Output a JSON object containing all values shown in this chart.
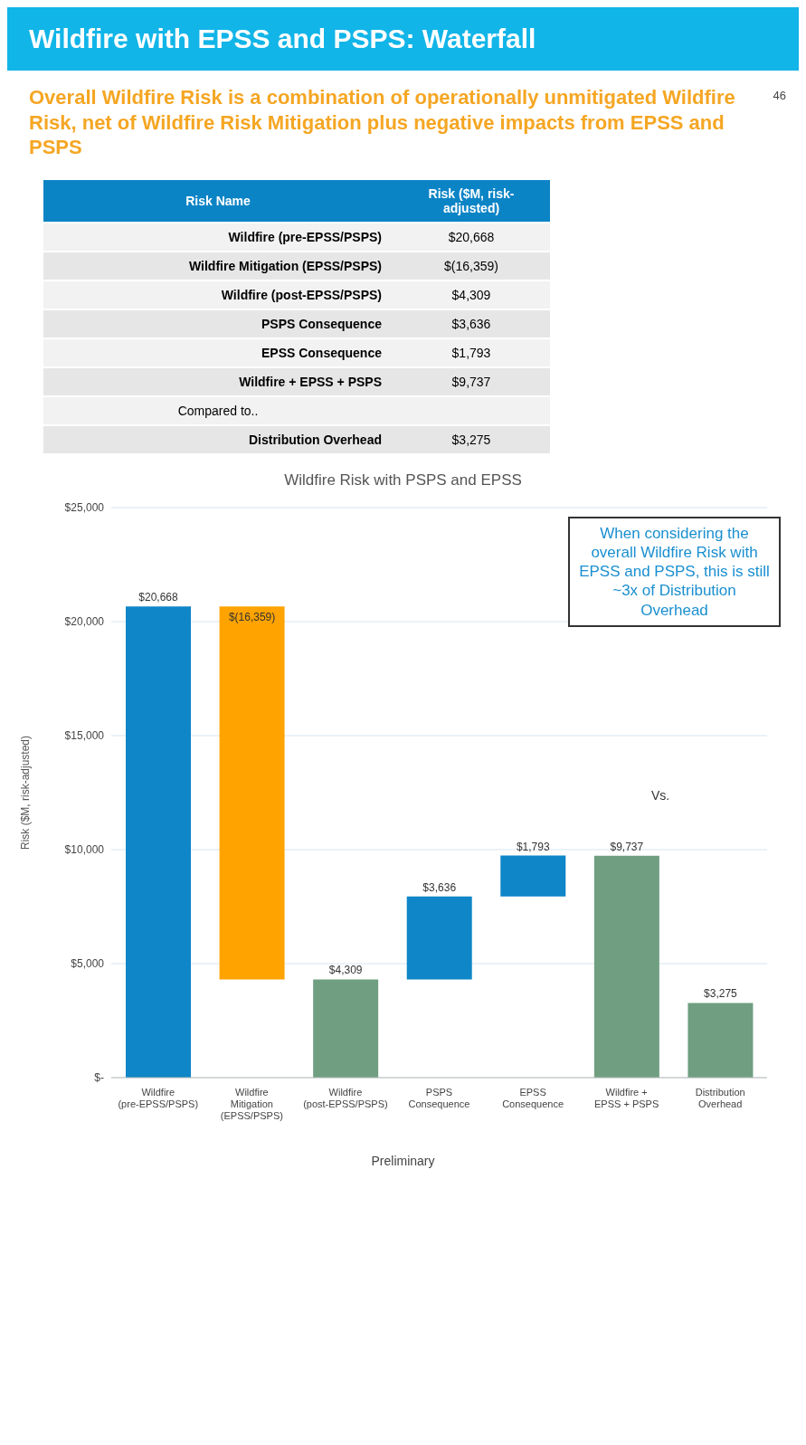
{
  "chart_data": {
    "type": "bar",
    "title": "Wildfire with EPSS and PSPS: Waterfall",
    "subtitle": "Overall Wildfire Risk is a combination of operationally unmitigated Wildfire Risk, net of Wildfire Risk Mitigation plus negative impacts from EPSS and PSPS",
    "ylabel": "Risk ($M, risk-adjusted)",
    "categories": [
      "Wildfire (pre-EPSS/PSPS)",
      "Wildfire Mitigation (EPSS/PSPS)",
      "Wildfire (post-EPSS/PSPS)",
      "PSPS Consequence",
      "EPSS Consequence",
      "Wildfire + EPSS + PSPS",
      "Distribution Overhead"
    ],
    "values": [
      20668,
      -16359,
      4309,
      3636,
      1793,
      9737,
      3275
    ],
    "base": [
      0,
      20668,
      0,
      4309,
      7945,
      0,
      0
    ],
    "colors": [
      "#0e86c8",
      "#ffa300",
      "#6f9f80",
      "#0e86c8",
      "#0e86c8",
      "#6f9f80",
      "#6f9f80"
    ],
    "value_labels": [
      "$20,668",
      "$(16,359)",
      "$4,309",
      "$3,636",
      "$1,793",
      "$9,737",
      "$3,275"
    ],
    "ylim": [
      0,
      25000
    ],
    "yticks": [
      {
        "value": 0,
        "label": "$-"
      },
      {
        "value": 5000,
        "label": "$5,000"
      },
      {
        "value": 10000,
        "label": "$10,000"
      },
      {
        "value": 15000,
        "label": "$15,000"
      },
      {
        "value": 20000,
        "label": "$20,000"
      },
      {
        "value": 25000,
        "label": "$25,000"
      }
    ],
    "grid": "y",
    "annotations": [
      "Risk Name",
      "Risk ($M, risk-adjusted)",
      "Compared to..",
      "Wildfire Risk with PSPS and EPSS",
      "When considering the overall Wildfire Risk with EPSS and PSPS, this is still ~3x of Distribution Overhead",
      "Vs.",
      "Preliminary",
      "46"
    ]
  }
}
